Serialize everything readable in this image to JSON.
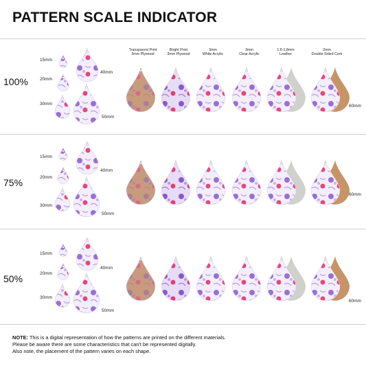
{
  "title": "PATTERN SCALE INDICATOR",
  "scales": [
    {
      "label": "100%",
      "sizes": [
        "15mm",
        "20mm",
        "30mm"
      ],
      "small_sizes": [
        "40mm",
        "50mm"
      ],
      "right_size": "60mm"
    },
    {
      "label": "75%",
      "sizes": [
        "15mm",
        "20mm",
        "30mm"
      ],
      "small_sizes": [
        "40mm",
        "50mm"
      ],
      "right_size": "60mm"
    },
    {
      "label": "50%",
      "sizes": [
        "15mm",
        "20mm",
        "30mm"
      ],
      "small_sizes": [
        "40mm",
        "50mm"
      ],
      "right_size": "60mm"
    }
  ],
  "materials": [
    {
      "line1": "Transparent Print",
      "line2": "3mm Plywood"
    },
    {
      "line1": "Bright Print",
      "line2": "3mm Plywood"
    },
    {
      "line1": "3mm",
      "line2": "White Acrylic"
    },
    {
      "line1": "3mm",
      "line2": "Clear Acrylic"
    },
    {
      "line1": "1.6-1.8mm",
      "line2": "Leather"
    },
    {
      "line1": "2mm",
      "line2": "Double Sided Cork"
    }
  ],
  "note": {
    "label": "NOTE:",
    "line1": "This is a digital representation of how the patterns are printed on the different materials.",
    "line2": "Please be aware there are some characteristics that can't be represented digitally.",
    "line3": "Also note, the placement of the pattern varies on each shape."
  },
  "colors": {
    "purple": "#9a6fd4",
    "light_purple": "#c9b2ef",
    "pink": "#e6477a",
    "wood": "#c89b7d",
    "leather": "#d0d0cc",
    "cork": "#c79466"
  }
}
